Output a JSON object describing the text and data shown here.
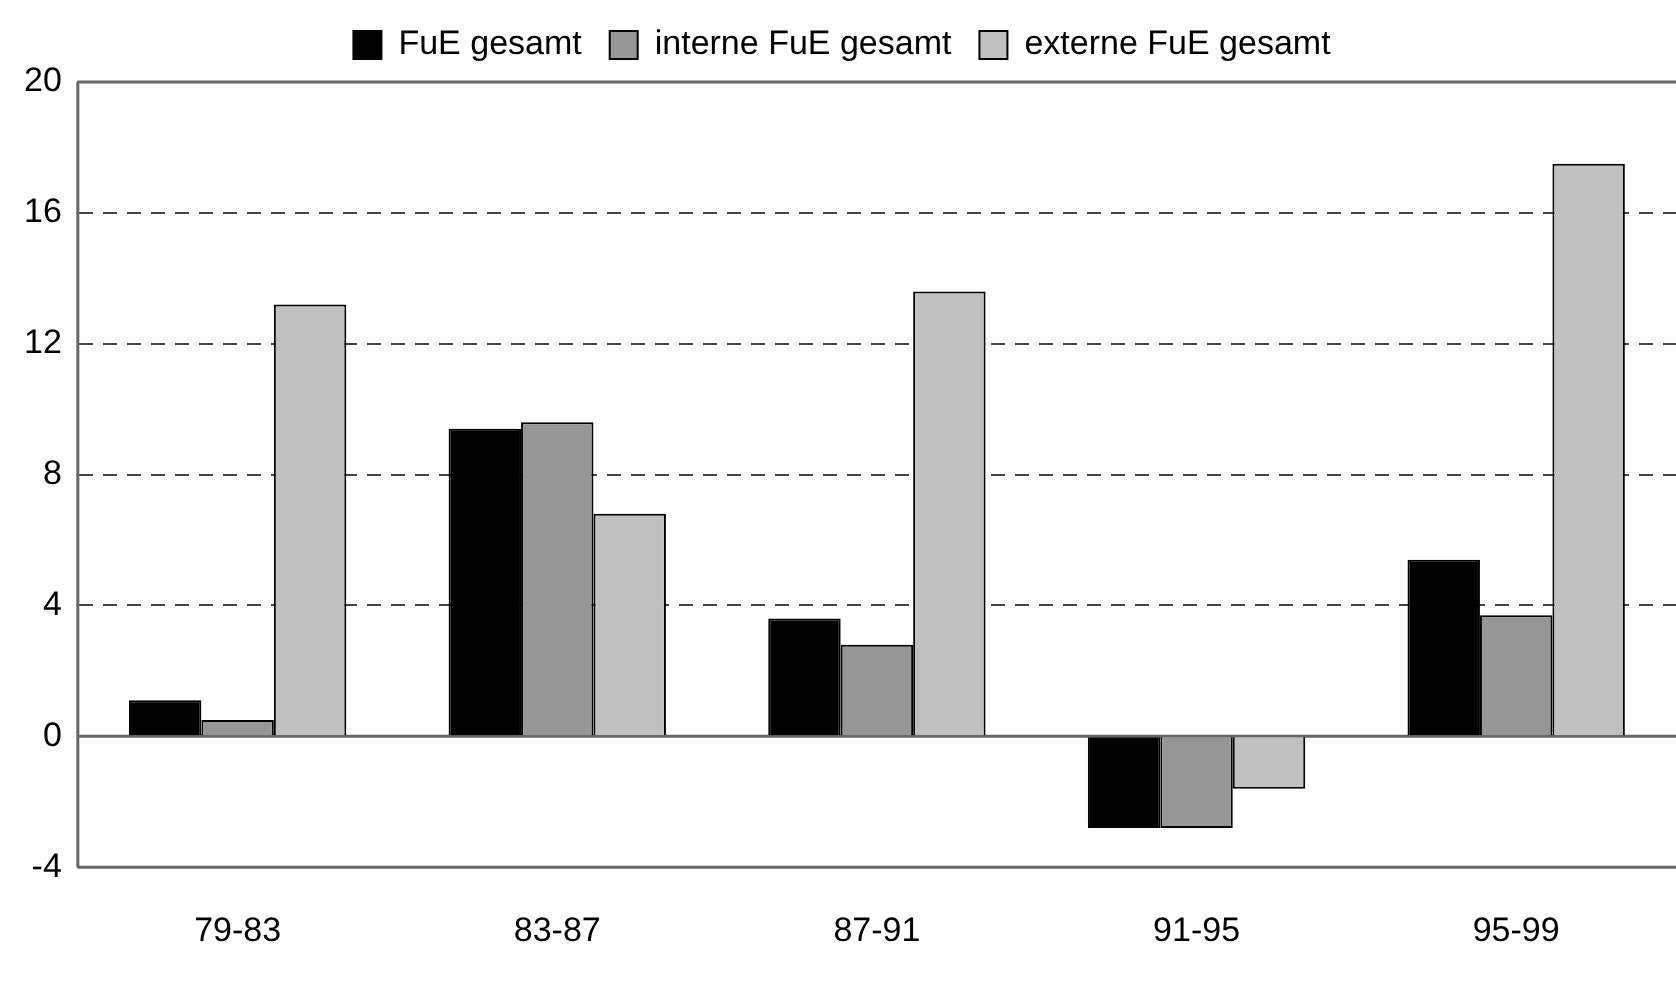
{
  "chart_data": {
    "type": "bar",
    "categories": [
      "79-83",
      "83-87",
      "87-91",
      "91-95",
      "95-99"
    ],
    "series": [
      {
        "name": "FuE gesamt",
        "color": "#000000",
        "values": [
          1.1,
          9.4,
          3.6,
          -2.8,
          5.4
        ]
      },
      {
        "name": "interne FuE gesamt",
        "color": "#969696",
        "values": [
          0.5,
          9.6,
          2.8,
          -2.8,
          3.7
        ]
      },
      {
        "name": "externe FuE gesamt",
        "color": "#c0c0c0",
        "values": [
          13.2,
          6.8,
          13.6,
          -1.6,
          17.5
        ]
      }
    ],
    "ylim": [
      -4,
      20
    ],
    "yticks": [
      -4,
      0,
      4,
      8,
      12,
      16,
      20
    ],
    "grid": "y",
    "legend": "top"
  }
}
